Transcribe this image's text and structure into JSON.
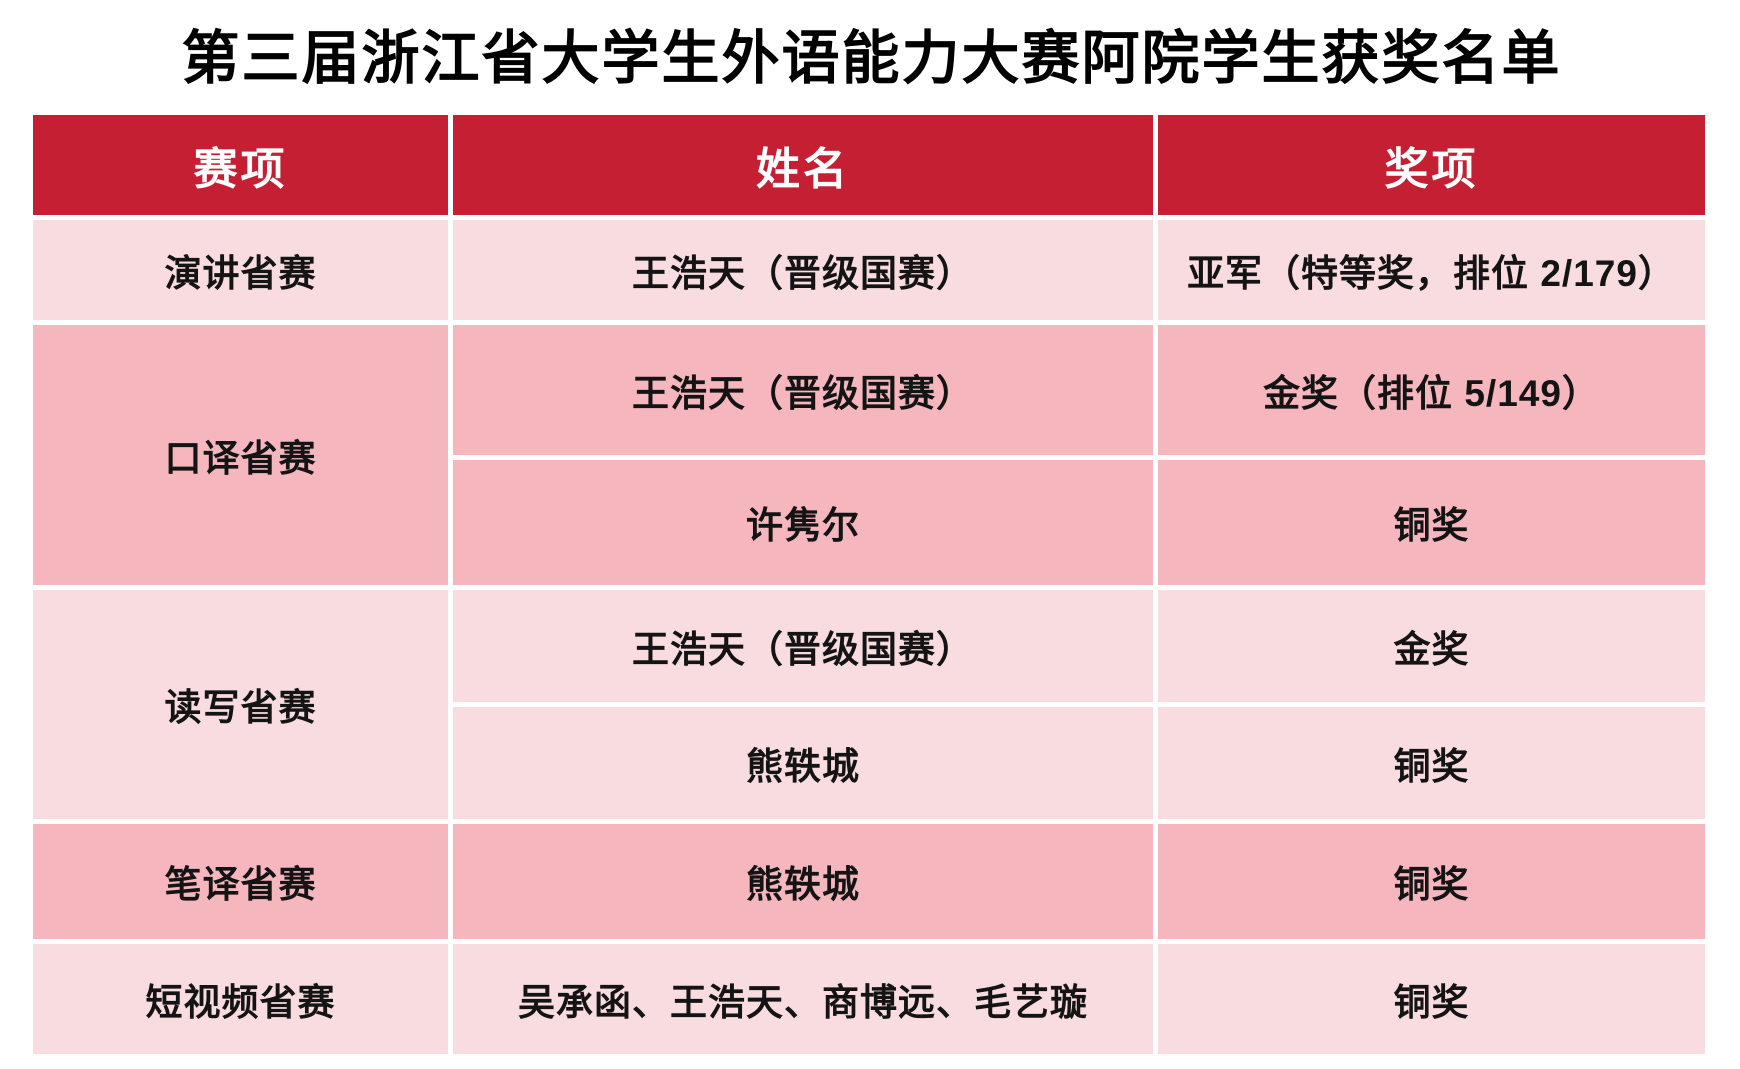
{
  "title": "第三届浙江省大学生外语能力大赛阿院学生获奖名单",
  "table": {
    "columns": [
      "赛项",
      "姓名",
      "奖项"
    ],
    "groups": [
      {
        "event": "演讲省赛",
        "shade": "light",
        "entries": [
          {
            "name": "王浩天（晋级国赛）",
            "award": "亚军（特等奖，排位 2/179）"
          }
        ]
      },
      {
        "event": "口译省赛",
        "shade": "dark",
        "entries": [
          {
            "name": "王浩天（晋级国赛）",
            "award": "金奖（排位 5/149）"
          },
          {
            "name": "许隽尔",
            "award": "铜奖"
          }
        ]
      },
      {
        "event": "读写省赛",
        "shade": "light",
        "entries": [
          {
            "name": "王浩天（晋级国赛）",
            "award": "金奖"
          },
          {
            "name": "熊轶城",
            "award": "铜奖"
          }
        ]
      },
      {
        "event": "笔译省赛",
        "shade": "dark",
        "entries": [
          {
            "name": "熊轶城",
            "award": "铜奖"
          }
        ]
      },
      {
        "event": "短视频省赛",
        "shade": "light",
        "entries": [
          {
            "name": "吴承函、王浩天、商博远、毛艺璇",
            "award": "铜奖"
          }
        ]
      }
    ]
  },
  "colors": {
    "header_red": "#C41F32",
    "row_light": "#F9DCE0",
    "row_dark": "#F5B6BE",
    "text": "#141414",
    "header_text": "#FFFFFF"
  }
}
